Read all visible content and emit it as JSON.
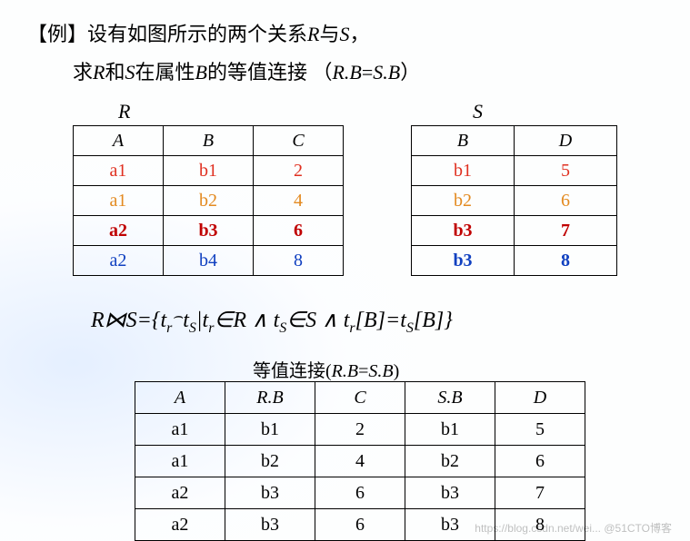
{
  "text": {
    "line1_pre": "【例】设有如图所示的两个关系",
    "line1_r": "R",
    "line1_mid": "与",
    "line1_s": "S",
    "line1_post": "，",
    "line2_pre": "求",
    "line2_r": "R",
    "line2_mid1": "和",
    "line2_s": "S",
    "line2_mid2": "在属性",
    "line2_b": "B",
    "line2_mid3": "的等值连接 （",
    "line2_eq_l": "R.B",
    "line2_eq_op": "=",
    "line2_eq_r": "S.B",
    "line2_post": "）",
    "label_r": "R",
    "label_s": "S"
  },
  "table_r": {
    "columns": [
      "A",
      "B",
      "C"
    ],
    "rows": [
      {
        "cells": [
          "a1",
          "b1",
          "2"
        ],
        "color": "#e03020",
        "bold": false
      },
      {
        "cells": [
          "a1",
          "b2",
          "4"
        ],
        "color": "#e38a20",
        "bold": false
      },
      {
        "cells": [
          "a2",
          "b3",
          "6"
        ],
        "color": "#c00000",
        "bold": true
      },
      {
        "cells": [
          "a2",
          "b4",
          "8"
        ],
        "color": "#1040c0",
        "bold": false
      }
    ]
  },
  "table_s": {
    "columns": [
      "B",
      "D"
    ],
    "rows": [
      {
        "cells": [
          "b1",
          "5"
        ],
        "color": "#e03020",
        "bold": false
      },
      {
        "cells": [
          "b2",
          "6"
        ],
        "color": "#e38a20",
        "bold": false
      },
      {
        "cells": [
          "b3",
          "7"
        ],
        "color": "#c00000",
        "bold": true
      },
      {
        "cells": [
          "b3",
          "8"
        ],
        "color": "#1040c0",
        "bold": true
      }
    ]
  },
  "formula": {
    "lhs_r": "R",
    "join": "⋈",
    "lhs_s": "S",
    "eq": "=",
    "lbrace": "{",
    "t": "t",
    "r_sub": "r",
    "concat": "⌢",
    "s_sub": "S",
    "bar": "|",
    "in": "∈",
    "R": "R",
    "and": " ∧ ",
    "S": "S",
    "lbrk": "[",
    "B": "B",
    "rbrk": "]",
    "eq2": "=",
    "rbrace": "}"
  },
  "result": {
    "title_pre": "等值连接(",
    "title_l": "R.B",
    "title_op": "=",
    "title_r": "S.B",
    "title_post": ")",
    "columns": [
      "A",
      "R.B",
      "C",
      "S.B",
      "D"
    ],
    "rows": [
      [
        "a1",
        "b1",
        "2",
        "b1",
        "5"
      ],
      [
        "a1",
        "b2",
        "4",
        "b2",
        "6"
      ],
      [
        "a2",
        "b3",
        "6",
        "b3",
        "7"
      ],
      [
        "a2",
        "b3",
        "6",
        "b3",
        "8"
      ]
    ]
  },
  "watermark": "https://blog.csdn.net/wei... @51CTO博客"
}
